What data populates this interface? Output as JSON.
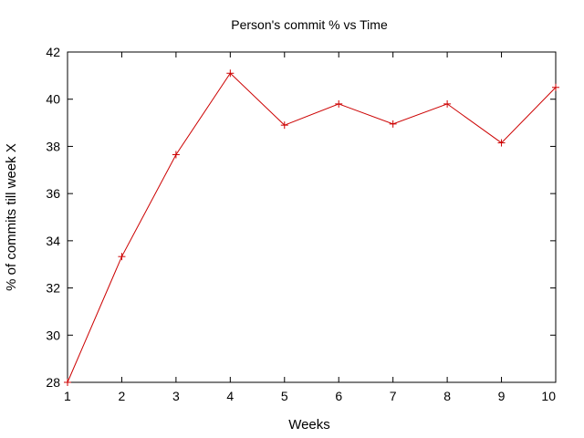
{
  "chart_data": {
    "type": "line",
    "title": "Person's commit % vs Time",
    "xlabel": "Weeks",
    "ylabel": "% of commits till week X",
    "xlim": [
      1,
      10
    ],
    "ylim": [
      28,
      42
    ],
    "xticks": [
      1,
      2,
      3,
      4,
      5,
      6,
      7,
      8,
      9,
      10
    ],
    "yticks": [
      28,
      30,
      32,
      34,
      36,
      38,
      40,
      42
    ],
    "grid": false,
    "series": [
      {
        "color": "#cc0000",
        "marker": "plus",
        "x": [
          1,
          2,
          3,
          4,
          5,
          6,
          7,
          8,
          9,
          10
        ],
        "y": [
          28.0,
          33.33,
          37.65,
          41.1,
          38.9,
          39.8,
          38.95,
          39.8,
          38.15,
          40.5
        ]
      }
    ]
  }
}
